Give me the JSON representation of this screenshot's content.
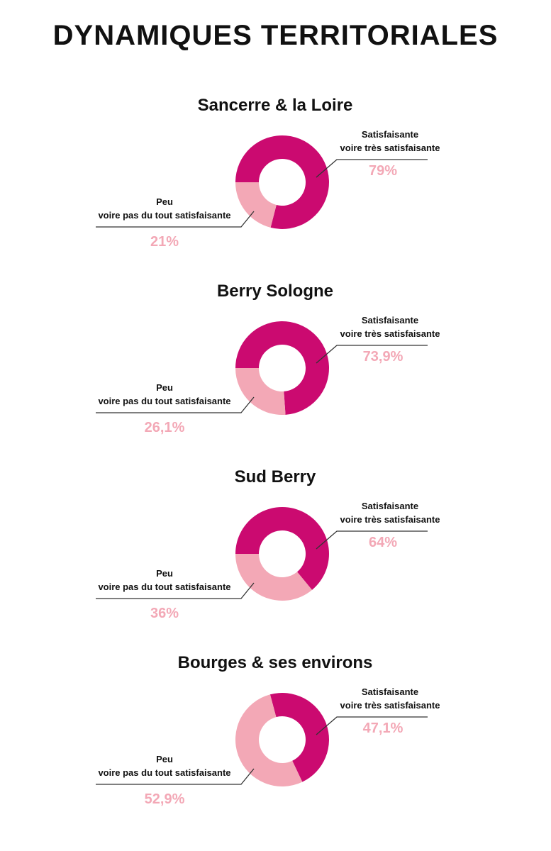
{
  "title": "DYNAMIQUES TERRITORIALES",
  "chart_data": [
    {
      "type": "pie",
      "title": "Sancerre & la Loire",
      "categories": [
        "Satisfaisante\nvoire très satisfaisante",
        "Peu\nvoire pas du tout satisfaisante"
      ],
      "values": [
        79,
        21
      ],
      "value_labels": [
        "79%",
        "21%"
      ],
      "colors": [
        "#cb0a70",
        "#f3a8b6"
      ]
    },
    {
      "type": "pie",
      "title": "Berry Sologne",
      "categories": [
        "Satisfaisante\nvoire très satisfaisante",
        "Peu\nvoire pas du tout satisfaisante"
      ],
      "values": [
        73.9,
        26.1
      ],
      "value_labels": [
        "73,9%",
        "26,1%"
      ],
      "colors": [
        "#cb0a70",
        "#f3a8b6"
      ]
    },
    {
      "type": "pie",
      "title": "Sud Berry",
      "categories": [
        "Satisfaisante\nvoire très satisfaisante",
        "Peu\nvoire pas du tout satisfaisante"
      ],
      "values": [
        64,
        36
      ],
      "value_labels": [
        "64%",
        "36%"
      ],
      "colors": [
        "#cb0a70",
        "#f3a8b6"
      ]
    },
    {
      "type": "pie",
      "title": "Bourges & ses environs",
      "categories": [
        "Satisfaisante\nvoire très satisfaisante",
        "Peu\nvoire pas du tout satisfaisante"
      ],
      "values": [
        47.1,
        52.9
      ],
      "value_labels": [
        "47,1%",
        "52,9%"
      ],
      "colors": [
        "#cb0a70",
        "#f3a8b6"
      ]
    }
  ]
}
